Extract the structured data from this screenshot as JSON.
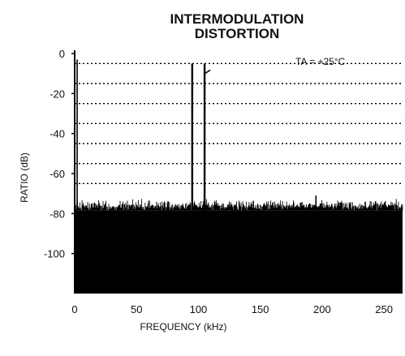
{
  "chart_data": {
    "type": "line",
    "title_lines": [
      "INTERMODULATION",
      "DISTORTION"
    ],
    "annotation": "TA = +25°C",
    "xlabel": "FREQUENCY (kHz)",
    "ylabel": "RATIO (dB)",
    "xlim": [
      0,
      265
    ],
    "ylim": [
      -120,
      0
    ],
    "x_ticks": [
      0,
      50,
      100,
      150,
      200,
      250
    ],
    "x_tick_labels": [
      "0",
      "50",
      "100",
      "150",
      "200",
      "250"
    ],
    "y_ticks": [
      0,
      -20,
      -40,
      -60,
      -80,
      -100
    ],
    "y_tick_labels": [
      "0",
      "-20",
      "-40",
      "-60",
      "-80",
      "-100"
    ],
    "grid": "dotted horizontal",
    "noise_floor": {
      "x_range": [
        0,
        265
      ],
      "top_db": -77,
      "peak_db": -74
    },
    "spurs": [
      {
        "x": 2,
        "y": -3
      },
      {
        "x": 195,
        "y": -71
      }
    ],
    "tones": [
      {
        "x": 95,
        "y": -5
      },
      {
        "x": 105,
        "y": -5
      }
    ]
  },
  "colors": {
    "trace": "#000000",
    "grid": "#000000",
    "background": "#ffffff"
  }
}
